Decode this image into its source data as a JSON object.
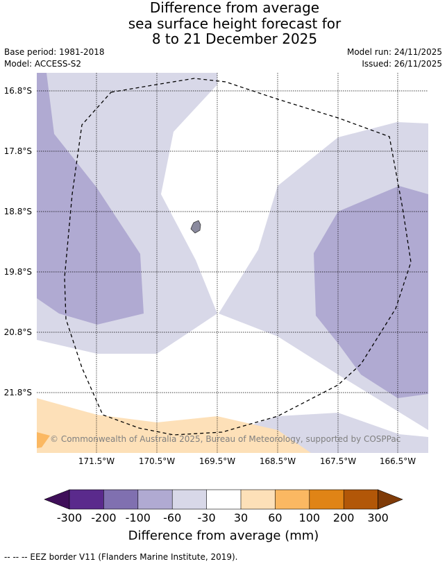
{
  "title": {
    "line1": "Difference from average",
    "line2": "sea surface height forecast for",
    "line3": "8 to 21 December 2025"
  },
  "meta": {
    "base_period": "Base period: 1981-2018",
    "model": "Model: ACCESS-S2",
    "model_run": "Model run: 24/11/2025",
    "issued": "Issued: 26/11/2025"
  },
  "map": {
    "lat_labels": [
      "16.8°S",
      "17.8°S",
      "18.8°S",
      "19.8°S",
      "20.8°S",
      "21.8°S"
    ],
    "lon_labels": [
      "171.5°W",
      "170.5°W",
      "169.5°W",
      "168.5°W",
      "167.5°W",
      "166.5°W"
    ],
    "copyright": "© Commonwealth of Australia 2025, Bureau of Meteorology, supported by COSPPac",
    "colors": {
      "neg300": "#3f0f59",
      "neg200": "#5a2a8c",
      "neg100": "#8070b0",
      "neg60": "#b0aad2",
      "neg30": "#d8d8e8",
      "zero": "#ffffff",
      "pos30": "#fde0b8",
      "pos60": "#fbb862",
      "pos100": "#e08416",
      "pos200": "#b25708",
      "pos300": "#7f3b08",
      "land": "#8a8a9e"
    }
  },
  "colorbar": {
    "ticks": [
      "-300",
      "-200",
      "-100",
      "-60",
      "-30",
      "30",
      "60",
      "100",
      "200",
      "300"
    ],
    "title": "Difference from average (mm)"
  },
  "footnote": "--  --  -- EEZ border V11 (Flanders Marine Institute, 2019)."
}
